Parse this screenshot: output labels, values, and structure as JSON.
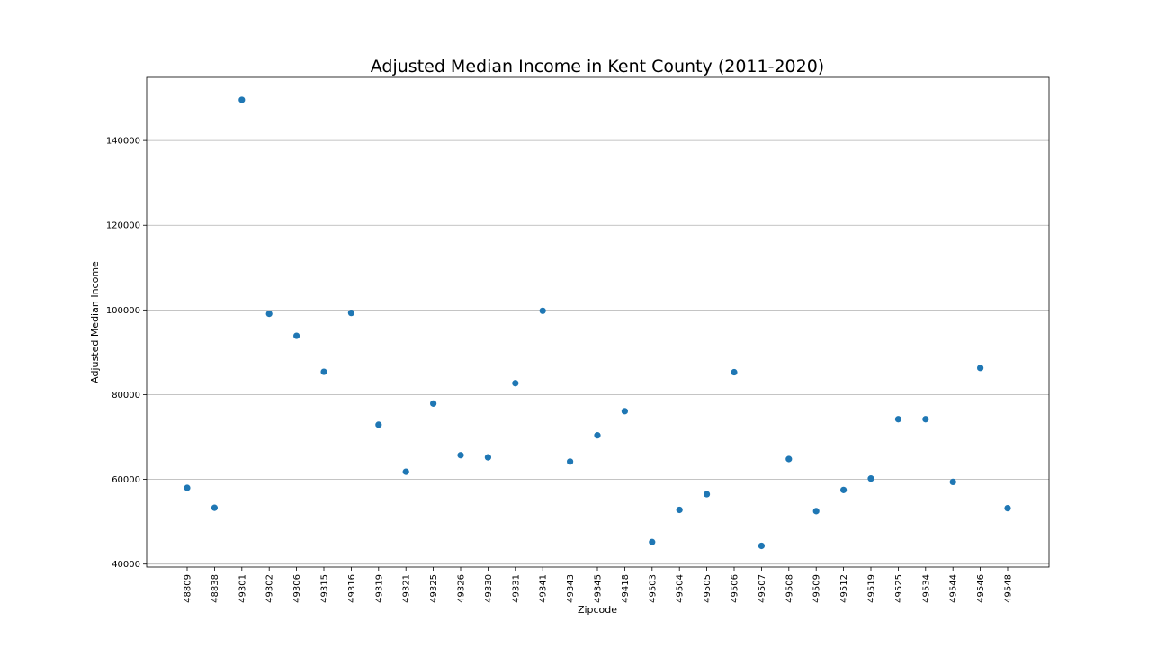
{
  "chart_data": {
    "type": "scatter",
    "title": "Adjusted Median Income in Kent County (2011-2020)",
    "xlabel": "Zipcode",
    "ylabel": "Adjusted Median Income",
    "categories": [
      "48809",
      "48838",
      "49301",
      "49302",
      "49306",
      "49315",
      "49316",
      "49319",
      "49321",
      "49325",
      "49326",
      "49330",
      "49331",
      "49341",
      "49343",
      "49345",
      "49418",
      "49503",
      "49504",
      "49505",
      "49506",
      "49507",
      "49508",
      "49509",
      "49512",
      "49519",
      "49525",
      "49534",
      "49544",
      "49546",
      "49548"
    ],
    "values": [
      58000,
      53300,
      149600,
      99100,
      93900,
      85400,
      99300,
      72900,
      61800,
      77900,
      65700,
      65200,
      82700,
      99800,
      64200,
      70400,
      76100,
      45200,
      52800,
      56500,
      85300,
      44300,
      64800,
      52500,
      57500,
      60200,
      74200,
      74200,
      59400,
      86300,
      53200
    ],
    "yticks": [
      40000,
      60000,
      80000,
      100000,
      120000,
      140000
    ],
    "ylim": [
      39300,
      154900
    ],
    "grid": "horizontal",
    "color": "#1f77b4"
  }
}
